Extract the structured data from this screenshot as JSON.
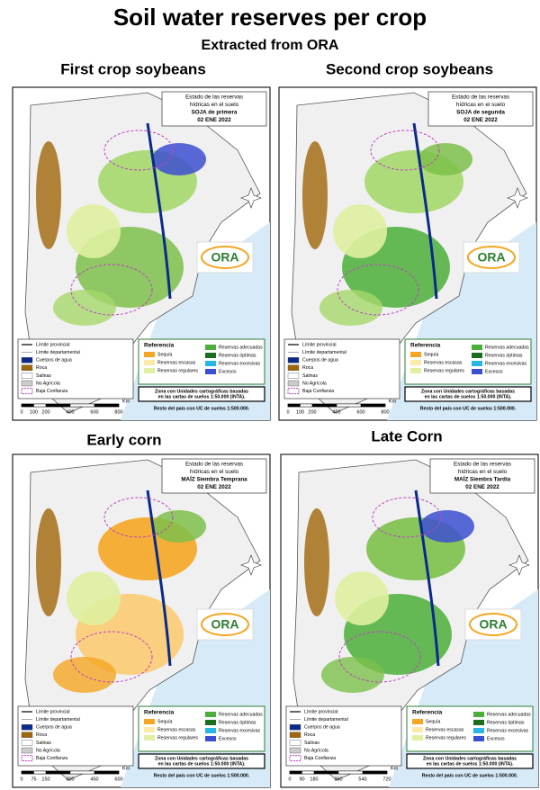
{
  "title": "Soil water reserves per crop",
  "subtitle": "Extracted from ORA",
  "logo_text": "ORA",
  "panels": [
    {
      "heading": "First crop soybeans",
      "info": [
        "Estado de las reservas",
        "hídricas en el suelo",
        "SOJA de primera",
        "02 ENE 2022"
      ],
      "legend": [
        "Límite provincial",
        "Límite departamental",
        "Cuerpos de agua",
        "Roca",
        "Salinas",
        "No Agrícola",
        "Baja Confianza"
      ],
      "reference_title": "Referencia",
      "reference": [
        "Sequía",
        "Reservas escasas",
        "Reservas regulares",
        "Reservas adecuadas",
        "Reservas óptimas",
        "Reservas excesivas",
        "Excesos"
      ],
      "zone_note": [
        "Zona con Unidades cartográficas basadas",
        "en las cartas de suelos 1:50.000 (INTA)."
      ],
      "rest_note": "Resto del país con UC de suelos 1:500.000.",
      "scale": [
        0,
        100,
        200,
        400,
        600,
        800
      ],
      "scale_unit": "Km"
    },
    {
      "heading": "Second crop soybeans",
      "info": [
        "Estado de las reservas",
        "hídricas en el suelo",
        "SOJA de segunda",
        "02 ENE 2022"
      ],
      "legend": [
        "Límite provincial",
        "Límite departamental",
        "Cuerpos de agua",
        "Roca",
        "Salinas",
        "No Agrícola",
        "Baja Confianza"
      ],
      "reference_title": "Referencia",
      "reference": [
        "Sequía",
        "Reservas escasas",
        "Reservas regulares",
        "Reservas adecuadas",
        "Reservas óptimas",
        "Reservas excesivas",
        "Excesos"
      ],
      "zone_note": [
        "Zona con Unidades cartográficas basadas",
        "en las cartas de suelos 1:50.000 (INTA)."
      ],
      "rest_note": "Resto del país con UC de suelos 1:500.000.",
      "scale": [
        0,
        100,
        200,
        400,
        600,
        800
      ],
      "scale_unit": "Km"
    },
    {
      "heading": "Early corn",
      "info": [
        "Estado de las reservas",
        "hídricas en el suelo",
        "MAÍZ Siembra Temprana",
        "02 ENE 2022"
      ],
      "legend": [
        "Límite provincial",
        "Límite departamental",
        "Cuerpos de agua",
        "Roca",
        "Salinas",
        "No Agrícola",
        "Baja Confianza"
      ],
      "reference_title": "Referencia",
      "reference": [
        "Sequía",
        "Reservas escasas",
        "Reservas regulares",
        "Reservas adecuadas",
        "Reservas óptimas",
        "Reservas excesivas",
        "Excesos"
      ],
      "zone_note": [
        "Zona con Unidades cartográficas basadas",
        "en las cartas de suelos 1:50.000 (INTA)."
      ],
      "rest_note": "Resto del país con UC de suelos 1:500.000.",
      "scale": [
        0,
        75,
        150,
        300,
        450,
        600
      ],
      "scale_unit": "Km"
    },
    {
      "heading": "Late Corn",
      "info": [
        "Estado de las reservas",
        "hídricas en el suelo",
        "MAÍZ Siembra Tardía",
        "02 ENE 2022"
      ],
      "legend": [
        "Límite provincial",
        "Límite departamental",
        "Cuerpos de agua",
        "Roca",
        "Salinas",
        "No Agrícola",
        "Baja Confianza"
      ],
      "reference_title": "Referencia",
      "reference": [
        "Sequía",
        "Reservas escasas",
        "Reservas regulares",
        "Reservas adecuadas",
        "Reservas óptimas",
        "Reservas excesivas",
        "Excesos"
      ],
      "zone_note": [
        "Zona con Unidades cartográficas basadas",
        "en las cartas de suelos 1:50.000 (INTA)."
      ],
      "rest_note": "Resto del país con UC de suelos 1:500.000.",
      "scale": [
        0,
        90,
        180,
        360,
        540,
        720
      ],
      "scale_unit": "Km"
    }
  ]
}
